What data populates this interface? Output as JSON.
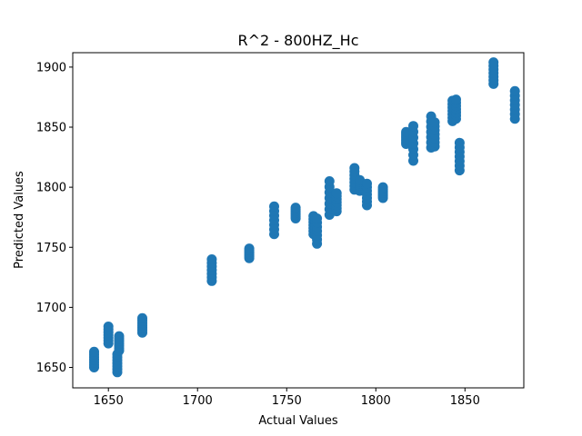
{
  "chart_data": {
    "type": "scatter",
    "title": "R^2 - 800HZ_Hc",
    "xlabel": "Actual Values",
    "ylabel": "Predicted Values",
    "xlim": [
      1630,
      1883
    ],
    "ylim": [
      1633,
      1912
    ],
    "xticks": [
      1650,
      1700,
      1750,
      1800,
      1850
    ],
    "yticks": [
      1650,
      1700,
      1750,
      1800,
      1850,
      1900
    ],
    "grid": false,
    "legend": "none",
    "marker_color": "#1f77b4",
    "clusters": [
      {
        "x": 1642,
        "ymin": 1650,
        "ymax": 1663
      },
      {
        "x": 1650,
        "ymin": 1670,
        "ymax": 1684
      },
      {
        "x": 1655,
        "ymin": 1646,
        "ymax": 1661
      },
      {
        "x": 1656,
        "ymin": 1664,
        "ymax": 1676
      },
      {
        "x": 1669,
        "ymin": 1679,
        "ymax": 1691
      },
      {
        "x": 1708,
        "ymin": 1722,
        "ymax": 1740
      },
      {
        "x": 1729,
        "ymin": 1741,
        "ymax": 1749
      },
      {
        "x": 1743,
        "ymin": 1761,
        "ymax": 1784
      },
      {
        "x": 1755,
        "ymin": 1774,
        "ymax": 1783
      },
      {
        "x": 1765,
        "ymin": 1761,
        "ymax": 1776
      },
      {
        "x": 1767,
        "ymin": 1753,
        "ymax": 1774
      },
      {
        "x": 1774,
        "ymin": 1777,
        "ymax": 1805
      },
      {
        "x": 1778,
        "ymin": 1780,
        "ymax": 1795
      },
      {
        "x": 1788,
        "ymin": 1798,
        "ymax": 1816
      },
      {
        "x": 1791,
        "ymin": 1797,
        "ymax": 1806
      },
      {
        "x": 1795,
        "ymin": 1785,
        "ymax": 1803
      },
      {
        "x": 1804,
        "ymin": 1791,
        "ymax": 1800
      },
      {
        "x": 1817,
        "ymin": 1836,
        "ymax": 1846
      },
      {
        "x": 1821,
        "ymin": 1822,
        "ymax": 1851
      },
      {
        "x": 1831,
        "ymin": 1833,
        "ymax": 1859
      },
      {
        "x": 1833,
        "ymin": 1834,
        "ymax": 1854
      },
      {
        "x": 1843,
        "ymin": 1855,
        "ymax": 1872
      },
      {
        "x": 1845,
        "ymin": 1857,
        "ymax": 1873
      },
      {
        "x": 1847,
        "ymin": 1814,
        "ymax": 1837
      },
      {
        "x": 1866,
        "ymin": 1886,
        "ymax": 1904
      },
      {
        "x": 1878,
        "ymin": 1857,
        "ymax": 1880
      }
    ]
  }
}
